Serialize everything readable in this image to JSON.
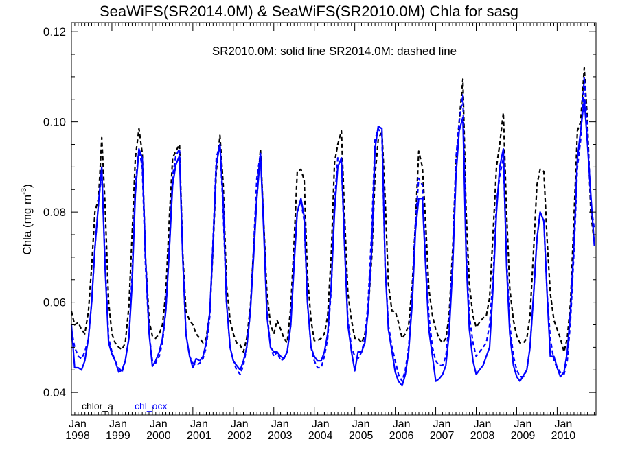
{
  "chart_data": {
    "type": "line",
    "title": "SeaWiFS(SR2014.0M) & SeaWiFS(SR2010.0M)  Chla for sasg",
    "ylabel": "Chla (mg m",
    "ylabel_sup": "-3",
    "ylabel_close": ")",
    "annotation": "SR2010.0M: solid line   SR2014.0M: dashed line",
    "legend": [
      {
        "label": "chlor_a",
        "color": "#000000"
      },
      {
        "label": "chl_ocx",
        "color": "#0000ff"
      }
    ],
    "xlim": [
      1998.0,
      2010.96
    ],
    "ylim": [
      0.035,
      0.122
    ],
    "yticks": [
      0.04,
      0.06,
      0.08,
      0.1,
      0.12
    ],
    "ytick_labels": [
      "0.04",
      "0.06",
      "0.08",
      "0.10",
      "0.12"
    ],
    "xticks": [
      {
        "month": "Jan",
        "year": "1998",
        "x": 1998
      },
      {
        "month": "Jan",
        "year": "1999",
        "x": 1999
      },
      {
        "month": "Jan",
        "year": "2000",
        "x": 2000
      },
      {
        "month": "Jan",
        "year": "2001",
        "x": 2001
      },
      {
        "month": "Jan",
        "year": "2002",
        "x": 2002
      },
      {
        "month": "Jan",
        "year": "2003",
        "x": 2003
      },
      {
        "month": "Jan",
        "year": "2004",
        "x": 2004
      },
      {
        "month": "Jan",
        "year": "2005",
        "x": 2005
      },
      {
        "month": "Jan",
        "year": "2006",
        "x": 2006
      },
      {
        "month": "Jan",
        "year": "2007",
        "x": 2007
      },
      {
        "month": "Jan",
        "year": "2008",
        "x": 2008
      },
      {
        "month": "Jan",
        "year": "2009",
        "x": 2009
      },
      {
        "month": "Jan",
        "year": "2010",
        "x": 2010
      }
    ],
    "series": [
      {
        "name": "chlor_a SR2014.0M",
        "color": "#000000",
        "style": "dashed",
        "x": [
          1998.0,
          1998.08,
          1998.17,
          1998.25,
          1998.33,
          1998.42,
          1998.5,
          1998.58,
          1998.67,
          1998.75,
          1998.83,
          1998.92,
          1999.0,
          1999.08,
          1999.17,
          1999.25,
          1999.33,
          1999.42,
          1999.5,
          1999.58,
          1999.67,
          1999.75,
          1999.83,
          1999.92,
          2000.0,
          2000.08,
          2000.17,
          2000.25,
          2000.33,
          2000.42,
          2000.5,
          2000.58,
          2000.67,
          2000.75,
          2000.83,
          2000.92,
          2001.0,
          2001.08,
          2001.17,
          2001.25,
          2001.33,
          2001.42,
          2001.5,
          2001.58,
          2001.67,
          2001.75,
          2001.83,
          2001.92,
          2002.0,
          2002.08,
          2002.17,
          2002.25,
          2002.33,
          2002.42,
          2002.5,
          2002.58,
          2002.67,
          2002.75,
          2002.83,
          2002.92,
          2003.0,
          2003.08,
          2003.17,
          2003.25,
          2003.33,
          2003.42,
          2003.5,
          2003.58,
          2003.67,
          2003.75,
          2003.83,
          2003.92,
          2004.0,
          2004.08,
          2004.17,
          2004.25,
          2004.33,
          2004.42,
          2004.5,
          2004.58,
          2004.67,
          2004.75,
          2004.83,
          2004.92,
          2005.0,
          2005.08,
          2005.17,
          2005.25,
          2005.33,
          2005.42,
          2005.5,
          2005.58,
          2005.67,
          2005.75,
          2005.83,
          2005.92,
          2006.0,
          2006.08,
          2006.17,
          2006.25,
          2006.33,
          2006.42,
          2006.5,
          2006.58,
          2006.67,
          2006.75,
          2006.83,
          2006.92,
          2007.0,
          2007.08,
          2007.17,
          2007.25,
          2007.33,
          2007.42,
          2007.5,
          2007.58,
          2007.67,
          2007.75,
          2007.83,
          2007.92,
          2008.0,
          2008.08,
          2008.17,
          2008.25,
          2008.33,
          2008.42,
          2008.5,
          2008.58,
          2008.67,
          2008.75,
          2008.83,
          2008.92,
          2009.0,
          2009.08,
          2009.17,
          2009.25,
          2009.33,
          2009.42,
          2009.5,
          2009.58,
          2009.67,
          2009.75,
          2009.83,
          2009.92,
          2010.0,
          2010.08,
          2010.17,
          2010.25,
          2010.33,
          2010.42,
          2010.5,
          2010.58,
          2010.67,
          2010.75,
          2010.83,
          2010.92
        ],
        "y": [
          0.058,
          0.055,
          0.0555,
          0.054,
          0.053,
          0.058,
          0.068,
          0.08,
          0.083,
          0.0965,
          0.082,
          0.06,
          0.053,
          0.051,
          0.05,
          0.0495,
          0.051,
          0.059,
          0.075,
          0.092,
          0.0985,
          0.093,
          0.07,
          0.056,
          0.0525,
          0.052,
          0.053,
          0.055,
          0.062,
          0.079,
          0.092,
          0.0935,
          0.095,
          0.071,
          0.058,
          0.056,
          0.055,
          0.053,
          0.052,
          0.051,
          0.052,
          0.058,
          0.072,
          0.089,
          0.097,
          0.086,
          0.064,
          0.056,
          0.053,
          0.051,
          0.0505,
          0.049,
          0.052,
          0.059,
          0.072,
          0.083,
          0.094,
          0.078,
          0.062,
          0.055,
          0.053,
          0.056,
          0.054,
          0.052,
          0.051,
          0.059,
          0.073,
          0.089,
          0.0895,
          0.087,
          0.066,
          0.056,
          0.0515,
          0.0515,
          0.052,
          0.053,
          0.057,
          0.071,
          0.091,
          0.095,
          0.098,
          0.079,
          0.062,
          0.056,
          0.052,
          0.052,
          0.051,
          0.053,
          0.058,
          0.07,
          0.088,
          0.096,
          0.098,
          0.083,
          0.064,
          0.058,
          0.058,
          0.0555,
          0.052,
          0.053,
          0.055,
          0.064,
          0.078,
          0.0935,
          0.09,
          0.078,
          0.063,
          0.057,
          0.054,
          0.052,
          0.051,
          0.052,
          0.057,
          0.072,
          0.091,
          0.1,
          0.1095,
          0.08,
          0.064,
          0.057,
          0.0545,
          0.0555,
          0.0565,
          0.057,
          0.061,
          0.076,
          0.09,
          0.095,
          0.102,
          0.08,
          0.063,
          0.056,
          0.0525,
          0.051,
          0.051,
          0.052,
          0.057,
          0.072,
          0.086,
          0.0895,
          0.089,
          0.074,
          0.062,
          0.056,
          0.054,
          0.052,
          0.049,
          0.052,
          0.06,
          0.08,
          0.098,
          0.1,
          0.112,
          0.1,
          0.08,
          0.073
        ]
      },
      {
        "name": "chl_ocx SR2014.0M",
        "color": "#0000ff",
        "style": "dashed",
        "x": [
          1998.0,
          1998.08,
          1998.17,
          1998.25,
          1998.33,
          1998.42,
          1998.5,
          1998.58,
          1998.67,
          1998.75,
          1998.83,
          1998.92,
          1999.0,
          1999.08,
          1999.17,
          1999.25,
          1999.33,
          1999.42,
          1999.5,
          1999.58,
          1999.67,
          1999.75,
          1999.83,
          1999.92,
          2000.0,
          2000.08,
          2000.17,
          2000.25,
          2000.33,
          2000.42,
          2000.5,
          2000.58,
          2000.67,
          2000.75,
          2000.83,
          2000.92,
          2001.0,
          2001.08,
          2001.17,
          2001.25,
          2001.33,
          2001.42,
          2001.5,
          2001.58,
          2001.67,
          2001.75,
          2001.83,
          2001.92,
          2002.0,
          2002.08,
          2002.17,
          2002.25,
          2002.33,
          2002.42,
          2002.5,
          2002.58,
          2002.67,
          2002.75,
          2002.83,
          2002.92,
          2003.0,
          2003.08,
          2003.17,
          2003.25,
          2003.33,
          2003.42,
          2003.5,
          2003.58,
          2003.67,
          2003.75,
          2003.83,
          2003.92,
          2004.0,
          2004.08,
          2004.17,
          2004.25,
          2004.33,
          2004.42,
          2004.5,
          2004.58,
          2004.67,
          2004.75,
          2004.83,
          2004.92,
          2005.0,
          2005.08,
          2005.17,
          2005.25,
          2005.33,
          2005.42,
          2005.5,
          2005.58,
          2005.67,
          2005.75,
          2005.83,
          2005.92,
          2006.0,
          2006.08,
          2006.17,
          2006.25,
          2006.33,
          2006.42,
          2006.5,
          2006.58,
          2006.67,
          2006.75,
          2006.83,
          2006.92,
          2007.0,
          2007.08,
          2007.17,
          2007.25,
          2007.33,
          2007.42,
          2007.5,
          2007.58,
          2007.67,
          2007.75,
          2007.83,
          2007.92,
          2008.0,
          2008.08,
          2008.17,
          2008.25,
          2008.33,
          2008.42,
          2008.5,
          2008.58,
          2008.67,
          2008.75,
          2008.83,
          2008.92,
          2009.0,
          2009.08,
          2009.17,
          2009.25,
          2009.33,
          2009.42,
          2009.5,
          2009.58,
          2009.67,
          2009.75,
          2009.83,
          2009.92,
          2010.0,
          2010.08,
          2010.17,
          2010.25,
          2010.33,
          2010.42,
          2010.5,
          2010.58,
          2010.67,
          2010.75,
          2010.83,
          2010.92
        ],
        "y": [
          0.054,
          0.05,
          0.048,
          0.0475,
          0.049,
          0.052,
          0.06,
          0.072,
          0.082,
          0.089,
          0.07,
          0.052,
          0.049,
          0.047,
          0.0455,
          0.0445,
          0.047,
          0.052,
          0.066,
          0.086,
          0.094,
          0.09,
          0.068,
          0.053,
          0.047,
          0.0465,
          0.048,
          0.051,
          0.058,
          0.072,
          0.088,
          0.0925,
          0.094,
          0.07,
          0.053,
          0.048,
          0.0465,
          0.046,
          0.0465,
          0.0475,
          0.05,
          0.057,
          0.074,
          0.092,
          0.095,
          0.08,
          0.06,
          0.05,
          0.047,
          0.045,
          0.044,
          0.046,
          0.05,
          0.058,
          0.072,
          0.0875,
          0.093,
          0.078,
          0.058,
          0.05,
          0.048,
          0.049,
          0.047,
          0.0475,
          0.049,
          0.055,
          0.07,
          0.08,
          0.0825,
          0.078,
          0.06,
          0.05,
          0.047,
          0.0455,
          0.0455,
          0.048,
          0.052,
          0.063,
          0.082,
          0.092,
          0.091,
          0.072,
          0.056,
          0.05,
          0.048,
          0.0475,
          0.049,
          0.052,
          0.06,
          0.076,
          0.096,
          0.0985,
          0.097,
          0.068,
          0.055,
          0.05,
          0.047,
          0.044,
          0.0425,
          0.045,
          0.05,
          0.062,
          0.078,
          0.0875,
          0.086,
          0.07,
          0.057,
          0.05,
          0.047,
          0.046,
          0.046,
          0.048,
          0.055,
          0.07,
          0.092,
          0.1,
          0.106,
          0.072,
          0.057,
          0.051,
          0.048,
          0.049,
          0.05,
          0.051,
          0.055,
          0.066,
          0.082,
          0.088,
          0.092,
          0.07,
          0.055,
          0.048,
          0.045,
          0.0435,
          0.0435,
          0.045,
          0.05,
          0.062,
          0.074,
          0.08,
          0.078,
          0.062,
          0.052,
          0.047,
          0.0455,
          0.0445,
          0.044,
          0.047,
          0.056,
          0.072,
          0.09,
          0.096,
          0.11,
          0.098,
          0.082,
          0.076
        ]
      },
      {
        "name": "chl_ocx SR2010.0M",
        "color": "#0000ff",
        "style": "solid",
        "x": [
          1998.0,
          1998.08,
          1998.17,
          1998.25,
          1998.33,
          1998.42,
          1998.5,
          1998.58,
          1998.67,
          1998.75,
          1998.83,
          1998.92,
          1999.0,
          1999.08,
          1999.17,
          1999.25,
          1999.33,
          1999.42,
          1999.5,
          1999.58,
          1999.67,
          1999.75,
          1999.83,
          1999.92,
          2000.0,
          2000.08,
          2000.17,
          2000.25,
          2000.33,
          2000.42,
          2000.5,
          2000.58,
          2000.67,
          2000.75,
          2000.83,
          2000.92,
          2001.0,
          2001.08,
          2001.17,
          2001.25,
          2001.33,
          2001.42,
          2001.5,
          2001.58,
          2001.67,
          2001.75,
          2001.83,
          2001.92,
          2002.0,
          2002.08,
          2002.17,
          2002.25,
          2002.33,
          2002.42,
          2002.5,
          2002.58,
          2002.67,
          2002.75,
          2002.83,
          2002.92,
          2003.0,
          2003.08,
          2003.17,
          2003.25,
          2003.33,
          2003.42,
          2003.5,
          2003.58,
          2003.67,
          2003.75,
          2003.83,
          2003.92,
          2004.0,
          2004.08,
          2004.17,
          2004.25,
          2004.33,
          2004.42,
          2004.5,
          2004.58,
          2004.67,
          2004.75,
          2004.83,
          2004.92,
          2005.0,
          2005.08,
          2005.17,
          2005.25,
          2005.33,
          2005.42,
          2005.5,
          2005.58,
          2005.67,
          2005.75,
          2005.83,
          2005.92,
          2006.0,
          2006.08,
          2006.17,
          2006.25,
          2006.33,
          2006.42,
          2006.5,
          2006.58,
          2006.67,
          2006.75,
          2006.83,
          2006.92,
          2007.0,
          2007.08,
          2007.17,
          2007.25,
          2007.33,
          2007.42,
          2007.5,
          2007.58,
          2007.67,
          2007.75,
          2007.83,
          2007.92,
          2008.0,
          2008.08,
          2008.17,
          2008.25,
          2008.33,
          2008.42,
          2008.5,
          2008.58,
          2008.67,
          2008.75,
          2008.83,
          2008.92,
          2009.0,
          2009.08,
          2009.17,
          2009.25,
          2009.33,
          2009.42,
          2009.5,
          2009.58,
          2009.67,
          2009.75,
          2009.83,
          2009.92,
          2010.0,
          2010.08,
          2010.17,
          2010.25,
          2010.33,
          2010.42,
          2010.5,
          2010.58,
          2010.67,
          2010.75,
          2010.83,
          2010.92
        ],
        "y": [
          0.055,
          0.0455,
          0.0455,
          0.045,
          0.047,
          0.052,
          0.06,
          0.072,
          0.082,
          0.09,
          0.068,
          0.051,
          0.0485,
          0.047,
          0.0445,
          0.045,
          0.047,
          0.052,
          0.064,
          0.084,
          0.094,
          0.092,
          0.07,
          0.053,
          0.0458,
          0.047,
          0.049,
          0.052,
          0.058,
          0.072,
          0.086,
          0.0905,
          0.0925,
          0.07,
          0.053,
          0.048,
          0.0455,
          0.0475,
          0.047,
          0.048,
          0.051,
          0.058,
          0.073,
          0.0905,
          0.095,
          0.082,
          0.06,
          0.05,
          0.047,
          0.046,
          0.045,
          0.047,
          0.05,
          0.058,
          0.07,
          0.083,
          0.093,
          0.076,
          0.057,
          0.05,
          0.049,
          0.049,
          0.048,
          0.0475,
          0.049,
          0.055,
          0.068,
          0.08,
          0.083,
          0.079,
          0.06,
          0.05,
          0.048,
          0.047,
          0.047,
          0.049,
          0.053,
          0.064,
          0.08,
          0.09,
          0.092,
          0.072,
          0.055,
          0.049,
          0.0448,
          0.049,
          0.049,
          0.051,
          0.058,
          0.072,
          0.094,
          0.099,
          0.0985,
          0.068,
          0.054,
          0.049,
          0.0445,
          0.0425,
          0.0415,
          0.044,
          0.049,
          0.06,
          0.076,
          0.083,
          0.083,
          0.068,
          0.054,
          0.048,
          0.0425,
          0.043,
          0.044,
          0.046,
          0.053,
          0.068,
          0.088,
          0.098,
          0.101,
          0.07,
          0.054,
          0.047,
          0.044,
          0.045,
          0.046,
          0.048,
          0.05,
          0.064,
          0.08,
          0.09,
          0.094,
          0.068,
          0.053,
          0.046,
          0.0435,
          0.0425,
          0.0438,
          0.045,
          0.05,
          0.062,
          0.074,
          0.08,
          0.078,
          0.062,
          0.048,
          0.048,
          0.0455,
          0.0435,
          0.0445,
          0.049,
          0.058,
          0.074,
          0.092,
          0.098,
          0.105,
          0.095,
          0.084,
          0.0725
        ]
      }
    ]
  }
}
